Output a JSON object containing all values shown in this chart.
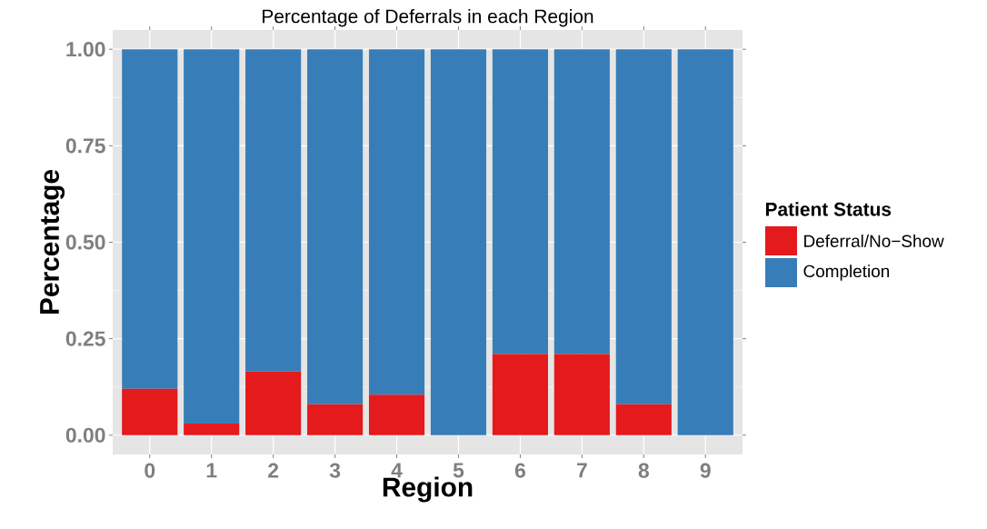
{
  "chart_data": {
    "type": "bar",
    "title": "Percentage of Deferrals in each Region",
    "xlabel": "Region",
    "ylabel": "Percentage",
    "legend_title": "Patient Status",
    "categories": [
      "0",
      "1",
      "2",
      "3",
      "4",
      "5",
      "6",
      "7",
      "8",
      "9"
    ],
    "series": [
      {
        "name": "Deferral/No−Show",
        "color": "#e41a1c",
        "values": [
          0.12,
          0.03,
          0.165,
          0.08,
          0.105,
          0,
          0.21,
          0.21,
          0.08,
          0
        ]
      },
      {
        "name": "Completion",
        "color": "#377eb8",
        "values": [
          0.88,
          0.97,
          0.835,
          0.92,
          0.895,
          1,
          0.79,
          0.79,
          0.92,
          1
        ]
      }
    ],
    "stacked": true,
    "ylim": [
      -0.05,
      1.05
    ],
    "yticks": [
      {
        "value": 0,
        "label": "0.00"
      },
      {
        "value": 0.25,
        "label": "0.25"
      },
      {
        "value": 0.5,
        "label": "0.50"
      },
      {
        "value": 0.75,
        "label": "0.75"
      },
      {
        "value": 1,
        "label": "1.00"
      }
    ],
    "grid": true,
    "legend": "right"
  }
}
